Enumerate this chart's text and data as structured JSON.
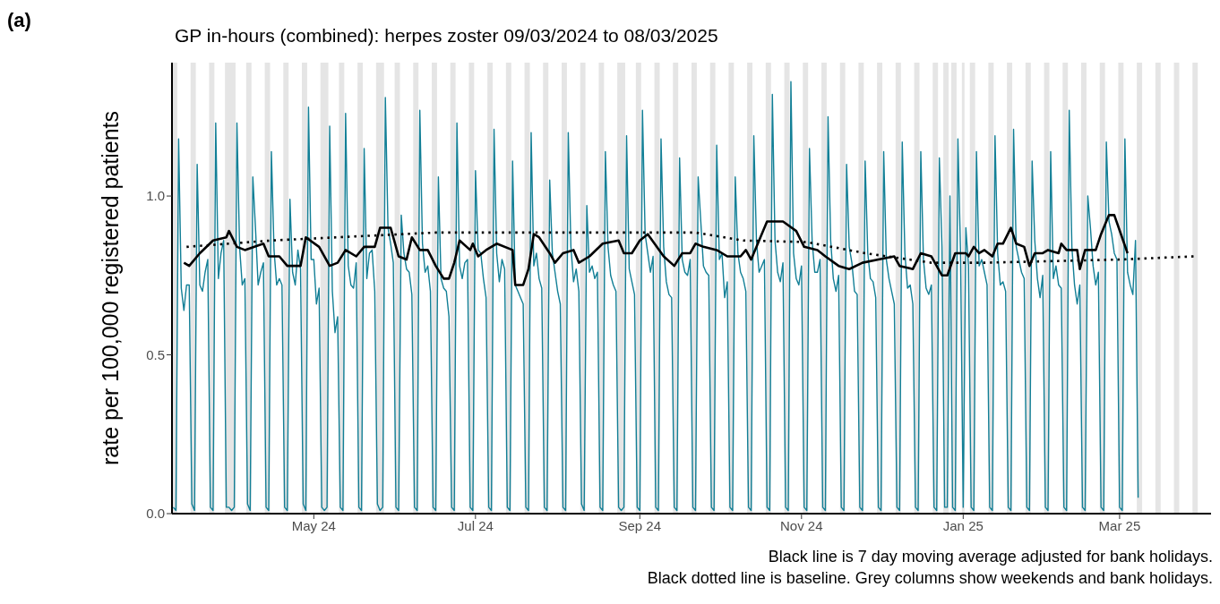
{
  "chart_data": {
    "type": "line",
    "title": "GP in-hours (combined): herpes zoster 09/03/2024 to 08/03/2025",
    "ylabel": "rate per 100,000 registered patients",
    "annotations": [
      "(a)",
      "Black line is 7 day moving average adjusted for bank holidays.",
      "Black dotted line is baseline. Grey columns show weekends and bank holidays."
    ],
    "xlim": [
      "2024-03-08T12:00",
      "2025-04-04T12:00"
    ],
    "xticks": [
      {
        "value": "2024-05-01",
        "label": "May 24"
      },
      {
        "value": "2024-07-01",
        "label": "Jul 24"
      },
      {
        "value": "2024-09-01",
        "label": "Sep 24"
      },
      {
        "value": "2024-11-01",
        "label": "Nov 24"
      },
      {
        "value": "2025-01-01",
        "label": "Jan 25"
      },
      {
        "value": "2025-03-01",
        "label": "Mar 25"
      }
    ],
    "ylim": [
      0,
      1.42
    ],
    "yticks": [
      {
        "value": 0,
        "label": "0.0"
      },
      {
        "value": 0.5,
        "label": "0.5"
      },
      {
        "value": 1,
        "label": "1.0"
      }
    ],
    "x": [
      "2024-03-09",
      "2024-03-10",
      "2024-03-11",
      "2024-03-12",
      "2024-03-13",
      "2024-03-14",
      "2024-03-15",
      "2024-03-16",
      "2024-03-17",
      "2024-03-18",
      "2024-03-19",
      "2024-03-20",
      "2024-03-21",
      "2024-03-22",
      "2024-03-23",
      "2024-03-24",
      "2024-03-25",
      "2024-03-26",
      "2024-03-27",
      "2024-03-28",
      "2024-03-29",
      "2024-03-30",
      "2024-03-31",
      "2024-04-01",
      "2024-04-02",
      "2024-04-03",
      "2024-04-04",
      "2024-04-05",
      "2024-04-06",
      "2024-04-07",
      "2024-04-08",
      "2024-04-09",
      "2024-04-10",
      "2024-04-11",
      "2024-04-12",
      "2024-04-13",
      "2024-04-14",
      "2024-04-15",
      "2024-04-16",
      "2024-04-17",
      "2024-04-18",
      "2024-04-19",
      "2024-04-20",
      "2024-04-21",
      "2024-04-22",
      "2024-04-23",
      "2024-04-24",
      "2024-04-25",
      "2024-04-26",
      "2024-04-27",
      "2024-04-28",
      "2024-04-29",
      "2024-04-30",
      "2024-05-01",
      "2024-05-02",
      "2024-05-03",
      "2024-05-04",
      "2024-05-05",
      "2024-05-06",
      "2024-05-07",
      "2024-05-08",
      "2024-05-09",
      "2024-05-10",
      "2024-05-11",
      "2024-05-12",
      "2024-05-13",
      "2024-05-14",
      "2024-05-15",
      "2024-05-16",
      "2024-05-17",
      "2024-05-18",
      "2024-05-19",
      "2024-05-20",
      "2024-05-21",
      "2024-05-22",
      "2024-05-23",
      "2024-05-24",
      "2024-05-25",
      "2024-05-26",
      "2024-05-27",
      "2024-05-28",
      "2024-05-29",
      "2024-05-30",
      "2024-05-31",
      "2024-06-01",
      "2024-06-02",
      "2024-06-03",
      "2024-06-04",
      "2024-06-05",
      "2024-06-06",
      "2024-06-07",
      "2024-06-08",
      "2024-06-09",
      "2024-06-10",
      "2024-06-11",
      "2024-06-12",
      "2024-06-13",
      "2024-06-14",
      "2024-06-15",
      "2024-06-16",
      "2024-06-17",
      "2024-06-18",
      "2024-06-19",
      "2024-06-20",
      "2024-06-21",
      "2024-06-22",
      "2024-06-23",
      "2024-06-24",
      "2024-06-25",
      "2024-06-26",
      "2024-06-27",
      "2024-06-28",
      "2024-06-29",
      "2024-06-30",
      "2024-07-01",
      "2024-07-02",
      "2024-07-03",
      "2024-07-04",
      "2024-07-05",
      "2024-07-06",
      "2024-07-07",
      "2024-07-08",
      "2024-07-09",
      "2024-07-10",
      "2024-07-11",
      "2024-07-12",
      "2024-07-13",
      "2024-07-14",
      "2024-07-15",
      "2024-07-16",
      "2024-07-17",
      "2024-07-18",
      "2024-07-19",
      "2024-07-20",
      "2024-07-21",
      "2024-07-22",
      "2024-07-23",
      "2024-07-24",
      "2024-07-25",
      "2024-07-26",
      "2024-07-27",
      "2024-07-28",
      "2024-07-29",
      "2024-07-30",
      "2024-07-31",
      "2024-08-01",
      "2024-08-02",
      "2024-08-03",
      "2024-08-04",
      "2024-08-05",
      "2024-08-06",
      "2024-08-07",
      "2024-08-08",
      "2024-08-09",
      "2024-08-10",
      "2024-08-11",
      "2024-08-12",
      "2024-08-13",
      "2024-08-14",
      "2024-08-15",
      "2024-08-16",
      "2024-08-17",
      "2024-08-18",
      "2024-08-19",
      "2024-08-20",
      "2024-08-21",
      "2024-08-22",
      "2024-08-23",
      "2024-08-24",
      "2024-08-25",
      "2024-08-26",
      "2024-08-27",
      "2024-08-28",
      "2024-08-29",
      "2024-08-30",
      "2024-08-31",
      "2024-09-01",
      "2024-09-02",
      "2024-09-03",
      "2024-09-04",
      "2024-09-05",
      "2024-09-06",
      "2024-09-07",
      "2024-09-08",
      "2024-09-09",
      "2024-09-10",
      "2024-09-11",
      "2024-09-12",
      "2024-09-13",
      "2024-09-14",
      "2024-09-15",
      "2024-09-16",
      "2024-09-17",
      "2024-09-18",
      "2024-09-19",
      "2024-09-20",
      "2024-09-21",
      "2024-09-22",
      "2024-09-23",
      "2024-09-24",
      "2024-09-25",
      "2024-09-26",
      "2024-09-27",
      "2024-09-28",
      "2024-09-29",
      "2024-09-30",
      "2024-10-01",
      "2024-10-02",
      "2024-10-03",
      "2024-10-04",
      "2024-10-05",
      "2024-10-06",
      "2024-10-07",
      "2024-10-08",
      "2024-10-09",
      "2024-10-10",
      "2024-10-11",
      "2024-10-12",
      "2024-10-13",
      "2024-10-14",
      "2024-10-15",
      "2024-10-16",
      "2024-10-17",
      "2024-10-18",
      "2024-10-19",
      "2024-10-20",
      "2024-10-21",
      "2024-10-22",
      "2024-10-23",
      "2024-10-24",
      "2024-10-25",
      "2024-10-26",
      "2024-10-27",
      "2024-10-28",
      "2024-10-29",
      "2024-10-30",
      "2024-10-31",
      "2024-11-01",
      "2024-11-02",
      "2024-11-03",
      "2024-11-04",
      "2024-11-05",
      "2024-11-06",
      "2024-11-07",
      "2024-11-08",
      "2024-11-09",
      "2024-11-10",
      "2024-11-11",
      "2024-11-12",
      "2024-11-13",
      "2024-11-14",
      "2024-11-15",
      "2024-11-16",
      "2024-11-17",
      "2024-11-18",
      "2024-11-19",
      "2024-11-20",
      "2024-11-21",
      "2024-11-22",
      "2024-11-23",
      "2024-11-24",
      "2024-11-25",
      "2024-11-26",
      "2024-11-27",
      "2024-11-28",
      "2024-11-29",
      "2024-11-30",
      "2024-12-01",
      "2024-12-02",
      "2024-12-03",
      "2024-12-04",
      "2024-12-05",
      "2024-12-06",
      "2024-12-07",
      "2024-12-08",
      "2024-12-09",
      "2024-12-10",
      "2024-12-11",
      "2024-12-12",
      "2024-12-13",
      "2024-12-14",
      "2024-12-15",
      "2024-12-16",
      "2024-12-17",
      "2024-12-18",
      "2024-12-19",
      "2024-12-20",
      "2024-12-21",
      "2024-12-22",
      "2024-12-23",
      "2024-12-24",
      "2024-12-25",
      "2024-12-26",
      "2024-12-27",
      "2024-12-28",
      "2024-12-29",
      "2024-12-30",
      "2024-12-31",
      "2025-01-01",
      "2025-01-02",
      "2025-01-03",
      "2025-01-04",
      "2025-01-05",
      "2025-01-06",
      "2025-01-07",
      "2025-01-08",
      "2025-01-09",
      "2025-01-10",
      "2025-01-11",
      "2025-01-12",
      "2025-01-13",
      "2025-01-14",
      "2025-01-15",
      "2025-01-16",
      "2025-01-17",
      "2025-01-18",
      "2025-01-19",
      "2025-01-20",
      "2025-01-21",
      "2025-01-22",
      "2025-01-23",
      "2025-01-24",
      "2025-01-25",
      "2025-01-26",
      "2025-01-27",
      "2025-01-28",
      "2025-01-29",
      "2025-01-30",
      "2025-01-31",
      "2025-02-01",
      "2025-02-02",
      "2025-02-03",
      "2025-02-04",
      "2025-02-05",
      "2025-02-06",
      "2025-02-07",
      "2025-02-08",
      "2025-02-09",
      "2025-02-10",
      "2025-02-11",
      "2025-02-12",
      "2025-02-13",
      "2025-02-14",
      "2025-02-15",
      "2025-02-16",
      "2025-02-17",
      "2025-02-18",
      "2025-02-19",
      "2025-02-20",
      "2025-02-21",
      "2025-02-22",
      "2025-02-23",
      "2025-02-24",
      "2025-02-25",
      "2025-02-26",
      "2025-02-27",
      "2025-02-28",
      "2025-03-01",
      "2025-03-02",
      "2025-03-03",
      "2025-03-04",
      "2025-03-05",
      "2025-03-06",
      "2025-03-07",
      "2025-03-08"
    ],
    "series": [
      {
        "color": "#127f96",
        "line_style": "solid",
        "values": [
          0.02,
          0.01,
          1.18,
          0.71,
          0.64,
          0.72,
          0.72,
          0.03,
          0.01,
          1.1,
          0.72,
          0.7,
          0.76,
          0.8,
          0.02,
          0.01,
          1.23,
          0.74,
          0.82,
          0.86,
          0.02,
          0.02,
          0.01,
          0.02,
          1.23,
          0.84,
          0.72,
          0.74,
          0.03,
          0.01,
          1.06,
          0.9,
          0.72,
          0.76,
          0.79,
          0.02,
          0.01,
          1.14,
          0.83,
          0.72,
          0.74,
          0.72,
          0.02,
          0.01,
          0.99,
          0.76,
          0.72,
          0.83,
          0.77,
          0.03,
          0.01,
          1.28,
          0.8,
          0.8,
          0.66,
          0.71,
          0.02,
          0.01,
          0.02,
          1.22,
          0.7,
          0.57,
          0.62,
          0.02,
          0.01,
          1.26,
          0.78,
          0.72,
          0.71,
          0.79,
          0.02,
          0.01,
          1.15,
          0.74,
          0.82,
          0.83,
          0.7,
          0.03,
          0.01,
          0.02,
          1.31,
          0.9,
          0.85,
          0.79,
          0.02,
          0.01,
          0.94,
          0.82,
          0.77,
          0.76,
          0.69,
          0.02,
          0.01,
          1.27,
          0.85,
          0.76,
          0.78,
          0.7,
          0.02,
          0.01,
          1.06,
          0.74,
          0.71,
          0.7,
          0.62,
          0.02,
          0.01,
          1.23,
          0.78,
          0.74,
          0.79,
          0.8,
          0.02,
          0.01,
          1.08,
          0.83,
          0.82,
          0.74,
          0.68,
          0.02,
          0.01,
          1.21,
          0.82,
          0.73,
          0.8,
          0.77,
          0.02,
          0.01,
          1.11,
          0.72,
          0.7,
          0.68,
          0.66,
          0.02,
          0.01,
          1.2,
          0.78,
          0.82,
          0.74,
          0.71,
          0.02,
          0.01,
          1.05,
          0.82,
          0.76,
          0.7,
          0.66,
          0.02,
          0.01,
          1.2,
          0.84,
          0.73,
          0.77,
          0.7,
          0.03,
          0.01,
          0.97,
          0.76,
          0.78,
          0.74,
          0.76,
          0.02,
          0.01,
          1.14,
          0.84,
          0.75,
          0.72,
          0.7,
          0.02,
          0.01,
          0.02,
          1.19,
          0.77,
          0.73,
          0.69,
          0.02,
          0.01,
          1.27,
          0.88,
          0.82,
          0.76,
          0.81,
          0.02,
          0.01,
          1.18,
          0.84,
          0.73,
          0.69,
          0.68,
          0.02,
          0.01,
          1.12,
          0.8,
          0.76,
          0.75,
          0.8,
          0.02,
          0.01,
          1.06,
          0.92,
          0.78,
          0.76,
          0.75,
          0.02,
          0.01,
          1.16,
          0.8,
          0.82,
          0.68,
          0.73,
          0.02,
          0.01,
          1.06,
          0.82,
          0.76,
          0.74,
          0.7,
          0.02,
          0.01,
          1.19,
          0.86,
          0.76,
          0.78,
          0.8,
          0.02,
          0.01,
          1.32,
          0.86,
          0.76,
          0.73,
          0.79,
          0.02,
          0.01,
          1.36,
          0.82,
          0.74,
          0.72,
          0.78,
          0.02,
          0.01,
          1.15,
          0.86,
          0.76,
          0.76,
          0.8,
          0.02,
          0.01,
          1.25,
          0.86,
          0.74,
          0.7,
          0.75,
          0.02,
          0.01,
          1.1,
          0.84,
          0.79,
          0.7,
          0.69,
          0.02,
          0.01,
          1.11,
          0.82,
          0.74,
          0.73,
          0.68,
          0.02,
          0.01,
          1.14,
          0.8,
          0.74,
          0.7,
          0.66,
          0.02,
          0.01,
          1.17,
          0.82,
          0.71,
          0.72,
          0.66,
          0.02,
          0.01,
          1.14,
          0.8,
          0.71,
          0.69,
          0.72,
          0.02,
          0.01,
          1.12,
          0.84,
          0.02,
          0.02,
          1.0,
          0.02,
          0.01,
          1.18,
          0.82,
          0.02,
          0.9,
          0.78,
          0.02,
          0.01,
          1.14,
          0.78,
          0.8,
          0.76,
          0.72,
          0.02,
          0.01,
          1.19,
          0.82,
          0.72,
          0.73,
          0.7,
          0.02,
          0.01,
          1.21,
          0.84,
          0.8,
          0.76,
          0.74,
          0.02,
          0.01,
          1.11,
          0.86,
          0.74,
          0.68,
          0.75,
          0.02,
          0.01,
          1.14,
          0.74,
          0.78,
          0.72,
          0.71,
          0.02,
          0.01,
          1.27,
          0.84,
          0.72,
          0.66,
          0.72,
          0.02,
          0.01,
          1.0,
          0.9,
          0.78,
          0.72,
          0.76,
          0.02,
          0.01,
          1.17,
          0.92,
          0.88,
          0.82,
          0.8,
          0.02,
          0.01,
          1.18,
          0.76,
          0.72,
          0.69,
          0.86,
          0.05
        ]
      },
      {
        "color": "#000000",
        "line_style": "solid",
        "x": [
          "2024-03-13",
          "2024-03-15",
          "2024-03-19",
          "2024-03-24",
          "2024-03-29",
          "2024-03-30",
          "2024-04-02",
          "2024-04-05",
          "2024-04-12",
          "2024-04-14",
          "2024-04-18",
          "2024-04-21",
          "2024-04-26",
          "2024-04-28",
          "2024-05-03",
          "2024-05-07",
          "2024-05-10",
          "2024-05-13",
          "2024-05-17",
          "2024-05-20",
          "2024-05-24",
          "2024-05-26",
          "2024-05-30",
          "2024-06-02",
          "2024-06-05",
          "2024-06-07",
          "2024-06-10",
          "2024-06-13",
          "2024-06-16",
          "2024-06-19",
          "2024-06-21",
          "2024-06-23",
          "2024-06-25",
          "2024-06-29",
          "2024-06-30",
          "2024-07-02",
          "2024-07-05",
          "2024-07-09",
          "2024-07-15",
          "2024-07-16",
          "2024-07-19",
          "2024-07-21",
          "2024-07-23",
          "2024-07-25",
          "2024-07-29",
          "2024-07-31",
          "2024-08-03",
          "2024-08-07",
          "2024-08-09",
          "2024-08-13",
          "2024-08-18",
          "2024-08-24",
          "2024-08-26",
          "2024-08-29",
          "2024-09-01",
          "2024-09-04",
          "2024-09-10",
          "2024-09-14",
          "2024-09-17",
          "2024-09-20",
          "2024-09-22",
          "2024-09-25",
          "2024-09-30",
          "2024-10-04",
          "2024-10-09",
          "2024-10-11",
          "2024-10-13",
          "2024-10-16",
          "2024-10-19",
          "2024-10-25",
          "2024-10-30",
          "2024-11-02",
          "2024-11-07",
          "2024-11-10",
          "2024-11-15",
          "2024-11-19",
          "2024-11-24",
          "2024-11-30",
          "2024-12-06",
          "2024-12-08",
          "2024-12-13",
          "2024-12-16",
          "2024-12-20",
          "2024-12-24",
          "2024-12-26",
          "2024-12-29",
          "2025-01-02",
          "2025-01-03",
          "2025-01-05",
          "2025-01-07",
          "2025-01-09",
          "2025-01-12",
          "2025-01-14",
          "2025-01-16",
          "2025-01-19",
          "2025-01-21",
          "2025-01-24",
          "2025-01-26",
          "2025-01-28",
          "2025-01-31",
          "2025-02-02",
          "2025-02-06",
          "2025-02-07",
          "2025-02-09",
          "2025-02-13",
          "2025-02-14",
          "2025-02-16",
          "2025-02-20",
          "2025-02-22",
          "2025-02-25",
          "2025-02-27",
          "2025-03-04"
        ],
        "values": [
          0.79,
          0.78,
          0.82,
          0.86,
          0.87,
          0.89,
          0.84,
          0.83,
          0.85,
          0.81,
          0.81,
          0.78,
          0.78,
          0.87,
          0.84,
          0.78,
          0.79,
          0.83,
          0.81,
          0.84,
          0.84,
          0.9,
          0.9,
          0.81,
          0.8,
          0.87,
          0.83,
          0.83,
          0.78,
          0.74,
          0.74,
          0.79,
          0.86,
          0.83,
          0.85,
          0.81,
          0.83,
          0.85,
          0.83,
          0.72,
          0.72,
          0.77,
          0.88,
          0.87,
          0.82,
          0.79,
          0.82,
          0.83,
          0.79,
          0.81,
          0.85,
          0.86,
          0.82,
          0.82,
          0.86,
          0.88,
          0.81,
          0.78,
          0.82,
          0.82,
          0.85,
          0.84,
          0.83,
          0.81,
          0.81,
          0.83,
          0.8,
          0.86,
          0.92,
          0.92,
          0.89,
          0.84,
          0.83,
          0.81,
          0.78,
          0.77,
          0.79,
          0.8,
          0.81,
          0.78,
          0.77,
          0.82,
          0.81,
          0.75,
          0.75,
          0.82,
          0.82,
          0.81,
          0.84,
          0.82,
          0.83,
          0.81,
          0.85,
          0.85,
          0.9,
          0.85,
          0.84,
          0.78,
          0.82,
          0.82,
          0.83,
          0.82,
          0.85,
          0.83,
          0.83,
          0.77,
          0.83,
          0.83,
          0.88,
          0.94,
          0.94,
          0.82
        ]
      },
      {
        "color": "#000000",
        "line_style": "dotted",
        "x": [
          "2024-03-14",
          "2024-04-15",
          "2024-06-16",
          "2024-08-07",
          "2024-09-22",
          "2024-10-10",
          "2024-11-03",
          "2024-11-25",
          "2024-12-20",
          "2025-01-09",
          "2025-03-01",
          "2025-03-29"
        ],
        "values": [
          0.84,
          0.86,
          0.885,
          0.885,
          0.885,
          0.86,
          0.855,
          0.82,
          0.79,
          0.79,
          0.8,
          0.81
        ]
      }
    ],
    "bands": [
      {
        "axis": "x",
        "from": "2024-03-08T12:00",
        "to": "2024-03-10T12:00",
        "color": "#e5e5e5"
      },
      {
        "axis": "x",
        "from": "2024-03-15T12:00",
        "to": "2024-03-17T12:00",
        "color": "#e5e5e5"
      },
      {
        "axis": "x",
        "from": "2024-03-22T12:00",
        "to": "2024-03-24T12:00",
        "color": "#e5e5e5"
      },
      {
        "axis": "x",
        "from": "2024-03-28T12:00",
        "to": "2024-04-01T12:00",
        "color": "#e5e5e5"
      },
      {
        "axis": "x",
        "from": "2024-04-05T12:00",
        "to": "2024-04-07T12:00",
        "color": "#e5e5e5"
      },
      {
        "axis": "x",
        "from": "2024-04-12T12:00",
        "to": "2024-04-14T12:00",
        "color": "#e5e5e5"
      },
      {
        "axis": "x",
        "from": "2024-04-19T12:00",
        "to": "2024-04-21T12:00",
        "color": "#e5e5e5"
      },
      {
        "axis": "x",
        "from": "2024-04-26T12:00",
        "to": "2024-04-28T12:00",
        "color": "#e5e5e5"
      },
      {
        "axis": "x",
        "from": "2024-05-03T12:00",
        "to": "2024-05-06T12:00",
        "color": "#e5e5e5"
      },
      {
        "axis": "x",
        "from": "2024-05-10T12:00",
        "to": "2024-05-12T12:00",
        "color": "#e5e5e5"
      },
      {
        "axis": "x",
        "from": "2024-05-17T12:00",
        "to": "2024-05-19T12:00",
        "color": "#e5e5e5"
      },
      {
        "axis": "x",
        "from": "2024-05-24T12:00",
        "to": "2024-05-27T12:00",
        "color": "#e5e5e5"
      },
      {
        "axis": "x",
        "from": "2024-05-31T12:00",
        "to": "2024-06-02T12:00",
        "color": "#e5e5e5"
      },
      {
        "axis": "x",
        "from": "2024-06-07T12:00",
        "to": "2024-06-09T12:00",
        "color": "#e5e5e5"
      },
      {
        "axis": "x",
        "from": "2024-06-14T12:00",
        "to": "2024-06-16T12:00",
        "color": "#e5e5e5"
      },
      {
        "axis": "x",
        "from": "2024-06-21T12:00",
        "to": "2024-06-23T12:00",
        "color": "#e5e5e5"
      },
      {
        "axis": "x",
        "from": "2024-06-28T12:00",
        "to": "2024-06-30T12:00",
        "color": "#e5e5e5"
      },
      {
        "axis": "x",
        "from": "2024-07-05T12:00",
        "to": "2024-07-07T12:00",
        "color": "#e5e5e5"
      },
      {
        "axis": "x",
        "from": "2024-07-12T12:00",
        "to": "2024-07-14T12:00",
        "color": "#e5e5e5"
      },
      {
        "axis": "x",
        "from": "2024-07-19T12:00",
        "to": "2024-07-21T12:00",
        "color": "#e5e5e5"
      },
      {
        "axis": "x",
        "from": "2024-07-26T12:00",
        "to": "2024-07-28T12:00",
        "color": "#e5e5e5"
      },
      {
        "axis": "x",
        "from": "2024-08-02T12:00",
        "to": "2024-08-04T12:00",
        "color": "#e5e5e5"
      },
      {
        "axis": "x",
        "from": "2024-08-09T12:00",
        "to": "2024-08-11T12:00",
        "color": "#e5e5e5"
      },
      {
        "axis": "x",
        "from": "2024-08-16T12:00",
        "to": "2024-08-18T12:00",
        "color": "#e5e5e5"
      },
      {
        "axis": "x",
        "from": "2024-08-23T12:00",
        "to": "2024-08-26T12:00",
        "color": "#e5e5e5"
      },
      {
        "axis": "x",
        "from": "2024-08-30T12:00",
        "to": "2024-09-01T12:00",
        "color": "#e5e5e5"
      },
      {
        "axis": "x",
        "from": "2024-09-06T12:00",
        "to": "2024-09-08T12:00",
        "color": "#e5e5e5"
      },
      {
        "axis": "x",
        "from": "2024-09-13T12:00",
        "to": "2024-09-15T12:00",
        "color": "#e5e5e5"
      },
      {
        "axis": "x",
        "from": "2024-09-20T12:00",
        "to": "2024-09-22T12:00",
        "color": "#e5e5e5"
      },
      {
        "axis": "x",
        "from": "2024-09-27T12:00",
        "to": "2024-09-29T12:00",
        "color": "#e5e5e5"
      },
      {
        "axis": "x",
        "from": "2024-10-04T12:00",
        "to": "2024-10-06T12:00",
        "color": "#e5e5e5"
      },
      {
        "axis": "x",
        "from": "2024-10-11T12:00",
        "to": "2024-10-13T12:00",
        "color": "#e5e5e5"
      },
      {
        "axis": "x",
        "from": "2024-10-18T12:00",
        "to": "2024-10-20T12:00",
        "color": "#e5e5e5"
      },
      {
        "axis": "x",
        "from": "2024-10-25T12:00",
        "to": "2024-10-27T12:00",
        "color": "#e5e5e5"
      },
      {
        "axis": "x",
        "from": "2024-11-01T12:00",
        "to": "2024-11-03T12:00",
        "color": "#e5e5e5"
      },
      {
        "axis": "x",
        "from": "2024-11-08T12:00",
        "to": "2024-11-10T12:00",
        "color": "#e5e5e5"
      },
      {
        "axis": "x",
        "from": "2024-11-15T12:00",
        "to": "2024-11-17T12:00",
        "color": "#e5e5e5"
      },
      {
        "axis": "x",
        "from": "2024-11-22T12:00",
        "to": "2024-11-24T12:00",
        "color": "#e5e5e5"
      },
      {
        "axis": "x",
        "from": "2024-11-29T12:00",
        "to": "2024-12-01T12:00",
        "color": "#e5e5e5"
      },
      {
        "axis": "x",
        "from": "2024-12-06T12:00",
        "to": "2024-12-08T12:00",
        "color": "#e5e5e5"
      },
      {
        "axis": "x",
        "from": "2024-12-13T12:00",
        "to": "2024-12-15T12:00",
        "color": "#e5e5e5"
      },
      {
        "axis": "x",
        "from": "2024-12-20T12:00",
        "to": "2024-12-22T12:00",
        "color": "#e5e5e5"
      },
      {
        "axis": "x",
        "from": "2024-12-24T12:00",
        "to": "2024-12-26T12:00",
        "color": "#e5e5e5"
      },
      {
        "axis": "x",
        "from": "2024-12-27T12:00",
        "to": "2024-12-29T12:00",
        "color": "#e5e5e5"
      },
      {
        "axis": "x",
        "from": "2024-12-31T12:00",
        "to": "2025-01-01T12:00",
        "color": "#e5e5e5"
      },
      {
        "axis": "x",
        "from": "2025-01-03T12:00",
        "to": "2025-01-05T12:00",
        "color": "#e5e5e5"
      },
      {
        "axis": "x",
        "from": "2025-01-10T12:00",
        "to": "2025-01-12T12:00",
        "color": "#e5e5e5"
      },
      {
        "axis": "x",
        "from": "2025-01-17T12:00",
        "to": "2025-01-19T12:00",
        "color": "#e5e5e5"
      },
      {
        "axis": "x",
        "from": "2025-01-24T12:00",
        "to": "2025-01-26T12:00",
        "color": "#e5e5e5"
      },
      {
        "axis": "x",
        "from": "2025-01-31T12:00",
        "to": "2025-02-02T12:00",
        "color": "#e5e5e5"
      },
      {
        "axis": "x",
        "from": "2025-02-07T12:00",
        "to": "2025-02-09T12:00",
        "color": "#e5e5e5"
      },
      {
        "axis": "x",
        "from": "2025-02-14T12:00",
        "to": "2025-02-16T12:00",
        "color": "#e5e5e5"
      },
      {
        "axis": "x",
        "from": "2025-02-21T12:00",
        "to": "2025-02-23T12:00",
        "color": "#e5e5e5"
      },
      {
        "axis": "x",
        "from": "2025-02-28T12:00",
        "to": "2025-03-02T12:00",
        "color": "#e5e5e5"
      },
      {
        "axis": "x",
        "from": "2025-03-07T12:00",
        "to": "2025-03-09T12:00",
        "color": "#e5e5e5"
      },
      {
        "axis": "x",
        "from": "2025-03-14T12:00",
        "to": "2025-03-16T12:00",
        "color": "#e5e5e5"
      },
      {
        "axis": "x",
        "from": "2025-03-21T12:00",
        "to": "2025-03-23T12:00",
        "color": "#e5e5e5"
      },
      {
        "axis": "x",
        "from": "2025-03-28T12:00",
        "to": "2025-03-30T12:00",
        "color": "#e5e5e5"
      }
    ]
  }
}
